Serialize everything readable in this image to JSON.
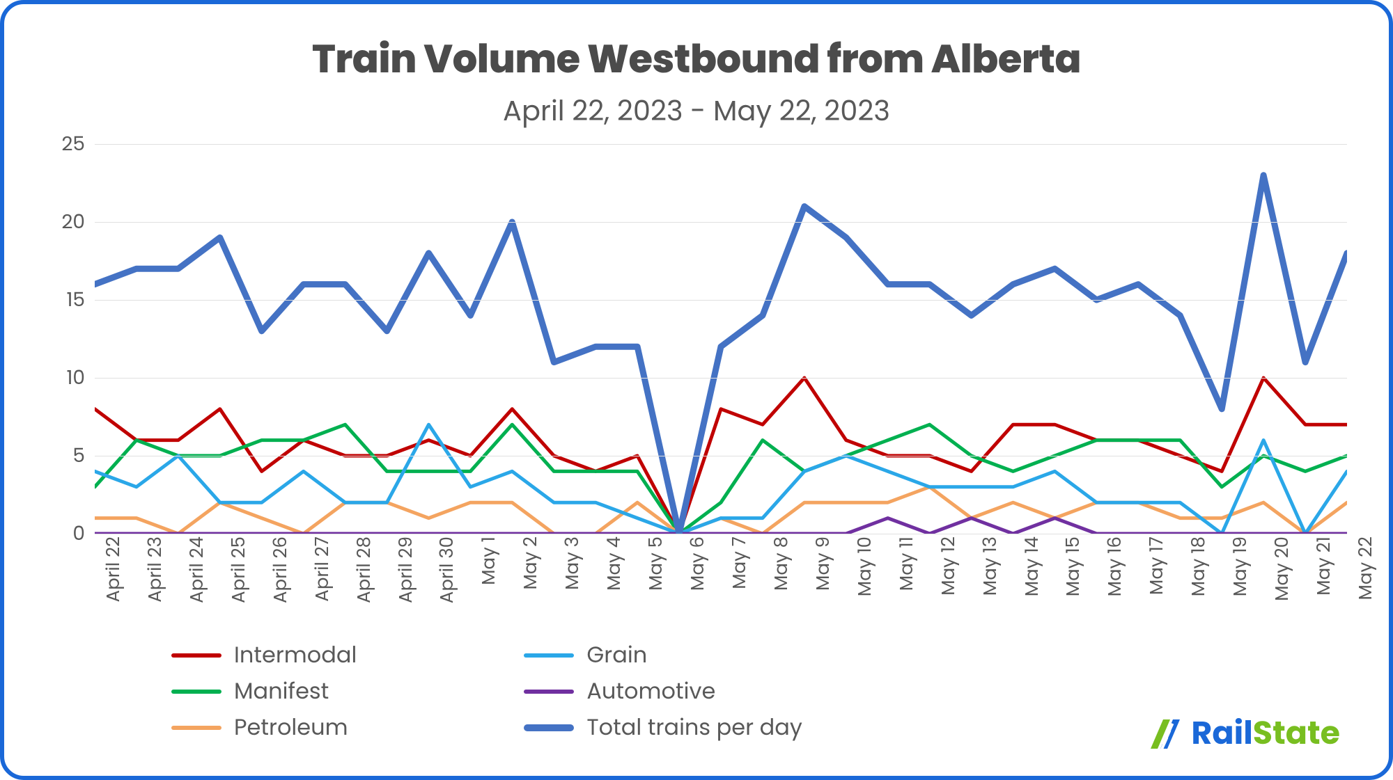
{
  "chart": {
    "type": "line",
    "title": "Train Volume Westbound from Alberta",
    "subtitle": "April 22, 2023 - May 22, 2023",
    "title_fontsize": 56,
    "title_color": "#4b4b4b",
    "subtitle_fontsize": 40,
    "subtitle_color": "#595959",
    "background_color": "#ffffff",
    "frame_border_color": "#1a68d8",
    "frame_border_width": 6,
    "frame_border_radius": 34,
    "grid_color": "#e0e0e0",
    "axis_label_color": "#595959",
    "axis_label_fontsize": 28,
    "xaxis_label_fontsize": 26,
    "ylim": [
      0,
      25
    ],
    "ytick_step": 5,
    "yticks": [
      0,
      5,
      10,
      15,
      20,
      25
    ],
    "categories": [
      "April 22",
      "April 23",
      "April 24",
      "April 25",
      "April 26",
      "April 27",
      "April 28",
      "April 29",
      "April 30",
      "May 1",
      "May 2",
      "May 3",
      "May 4",
      "May 5",
      "May 6",
      "May 7",
      "May 8",
      "May 9",
      "May 10",
      "May 11",
      "May 12",
      "May 13",
      "May 14",
      "May 15",
      "May 16",
      "May 17",
      "May 18",
      "May 19",
      "May 20",
      "May 21",
      "May 22"
    ],
    "series": [
      {
        "name": "Intermodal",
        "color": "#c00000",
        "width": 5,
        "values": [
          8,
          6,
          6,
          8,
          4,
          6,
          5,
          5,
          6,
          5,
          8,
          5,
          4,
          5,
          0,
          8,
          7,
          10,
          6,
          5,
          5,
          4,
          7,
          7,
          6,
          6,
          5,
          4,
          10,
          7,
          7
        ]
      },
      {
        "name": "Manifest",
        "color": "#00b050",
        "width": 5,
        "values": [
          3,
          6,
          5,
          5,
          6,
          6,
          7,
          4,
          4,
          4,
          7,
          4,
          4,
          4,
          0,
          2,
          6,
          4,
          5,
          6,
          7,
          5,
          4,
          5,
          6,
          6,
          6,
          3,
          5,
          4,
          5
        ]
      },
      {
        "name": "Petroleum",
        "color": "#f4a460",
        "width": 5,
        "values": [
          1,
          1,
          0,
          2,
          1,
          0,
          2,
          2,
          1,
          2,
          2,
          0,
          0,
          2,
          0,
          1,
          0,
          2,
          2,
          2,
          3,
          1,
          2,
          1,
          2,
          2,
          1,
          1,
          2,
          0,
          2
        ]
      },
      {
        "name": "Grain",
        "color": "#2aa7e8",
        "width": 5,
        "values": [
          4,
          3,
          5,
          2,
          2,
          4,
          2,
          2,
          7,
          3,
          4,
          2,
          2,
          1,
          0,
          1,
          1,
          4,
          5,
          4,
          3,
          3,
          3,
          4,
          2,
          2,
          2,
          0,
          6,
          0,
          4
        ]
      },
      {
        "name": "Automotive",
        "color": "#7030a0",
        "width": 5,
        "values": [
          0,
          0,
          0,
          0,
          0,
          0,
          0,
          0,
          0,
          0,
          0,
          0,
          0,
          0,
          0,
          0,
          0,
          0,
          0,
          1,
          0,
          1,
          0,
          1,
          0,
          0,
          0,
          0,
          0,
          0,
          0
        ]
      },
      {
        "name": "Total trains per day",
        "color": "#4472c4",
        "width": 9,
        "values": [
          16,
          17,
          17,
          19,
          13,
          16,
          16,
          13,
          18,
          14,
          20,
          11,
          12,
          12,
          0,
          12,
          14,
          21,
          19,
          16,
          16,
          14,
          16,
          17,
          15,
          16,
          14,
          8,
          23,
          11,
          18
        ]
      }
    ],
    "legend": {
      "fontsize": 32,
      "text_color": "#595959",
      "swatch_width": 72,
      "columns": [
        [
          "Intermodal",
          "Manifest",
          "Petroleum"
        ],
        [
          "Grain",
          "Automotive",
          "Total trains per day"
        ]
      ]
    }
  },
  "logo": {
    "text_rail": "Rail",
    "text_state": "State",
    "rail_color": "#1a68d8",
    "state_color": "#78be20",
    "fontsize": 46
  }
}
